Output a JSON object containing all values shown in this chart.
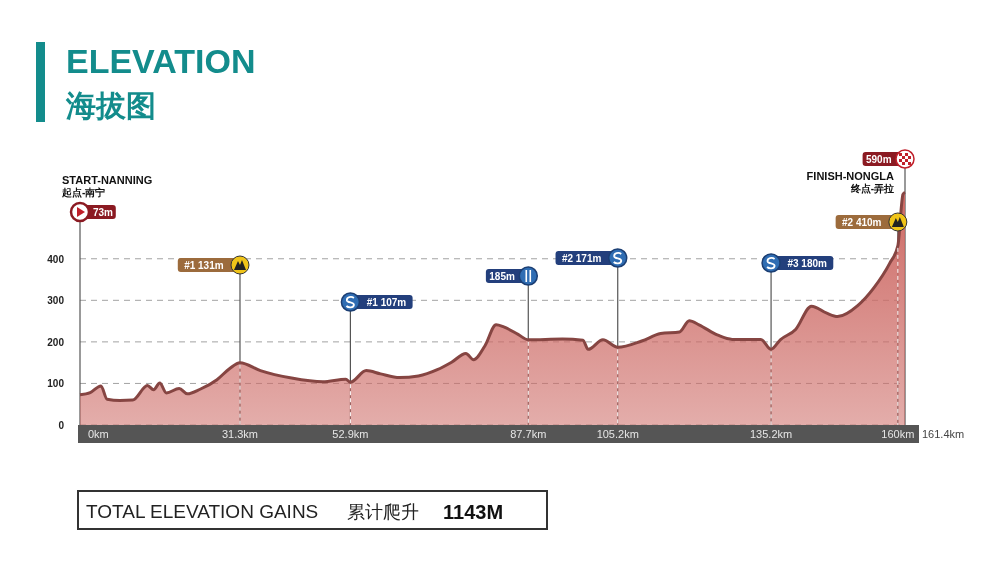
{
  "chart_data": {
    "type": "area",
    "title": "ELEVATION",
    "subtitle": "海拔图",
    "x": [
      0,
      2.0,
      4.1,
      5.3,
      7.8,
      10.3,
      13.2,
      14.4,
      15.6,
      16.9,
      19.4,
      21.0,
      23.5,
      26.8,
      29.3,
      31.3,
      35.3,
      41.4,
      47.5,
      52.0,
      52.9,
      56.0,
      58.8,
      62.5,
      66.2,
      69.9,
      72.7,
      75.5,
      77.0,
      79.2,
      81.4,
      82.9,
      85.7,
      87.7,
      94.4,
      98.4,
      99.4,
      102.3,
      105.2,
      109.9,
      113.6,
      117.3,
      119.2,
      121.1,
      124.8,
      127.6,
      133.2,
      135.2,
      137.0,
      140.0,
      143.1,
      146.1,
      148.2,
      152.2,
      155.3,
      158.4,
      160,
      161.0,
      161.4
    ],
    "series": [
      {
        "color": "#cd6a65",
        "values": [
          73,
          78,
          94,
          62,
          59,
          60,
          95,
          85,
          101,
          77,
          88,
          75,
          86,
          109,
          136,
          150,
          131,
          113,
          104,
          110,
          103,
          131,
          123,
          114,
          118,
          133,
          151,
          172,
          157,
          190,
          241,
          236,
          218,
          205,
          207,
          204,
          182,
          205,
          187,
          202,
          220,
          224,
          251,
          241,
          216,
          206,
          206,
          182,
          205,
          230,
          286,
          269,
          261,
          288,
          330,
          389,
          431,
          555,
          560
        ]
      }
    ],
    "xlim": [
      0,
      161.4
    ],
    "ylim": [
      0,
      640
    ],
    "xticks": [
      {
        "value": 0,
        "label": "0km"
      },
      {
        "value": 31.3,
        "label": "31.3km"
      },
      {
        "value": 52.9,
        "label": "52.9km"
      },
      {
        "value": 87.7,
        "label": "87.7km"
      },
      {
        "value": 105.2,
        "label": "105.2km"
      },
      {
        "value": 135.2,
        "label": "135.2km"
      },
      {
        "value": 160,
        "label": "160km"
      }
    ],
    "yticks": [
      0,
      100,
      200,
      300,
      400
    ],
    "grid": "y",
    "ref_lines": [
      {
        "axis": "x",
        "value": 31.3,
        "color": "#ffffff",
        "line_style": "dashed"
      },
      {
        "axis": "x",
        "value": 52.9,
        "color": "#ffffff",
        "line_style": "dashed"
      },
      {
        "axis": "x",
        "value": 87.7,
        "color": "#ffffff",
        "line_style": "dashed"
      },
      {
        "axis": "x",
        "value": 105.2,
        "color": "#ffffff",
        "line_style": "dashed"
      },
      {
        "axis": "x",
        "value": 135.2,
        "color": "#ffffff",
        "line_style": "dashed"
      },
      {
        "axis": "x",
        "value": 160,
        "color": "#ffffff",
        "line_style": "dashed"
      }
    ],
    "annotations": [
      "73m",
      "#1 131m",
      "#1 107m",
      "185m",
      "#2 171m",
      "#3 180m",
      "#2 410m",
      "590m",
      "START-NANNING",
      "起点-南宁",
      "FINISH-NONGLA",
      "终点-弄拉",
      "TOTAL ELEVATION GAINS",
      "累计爬升",
      "1143M",
      "161.4km"
    ]
  }
}
